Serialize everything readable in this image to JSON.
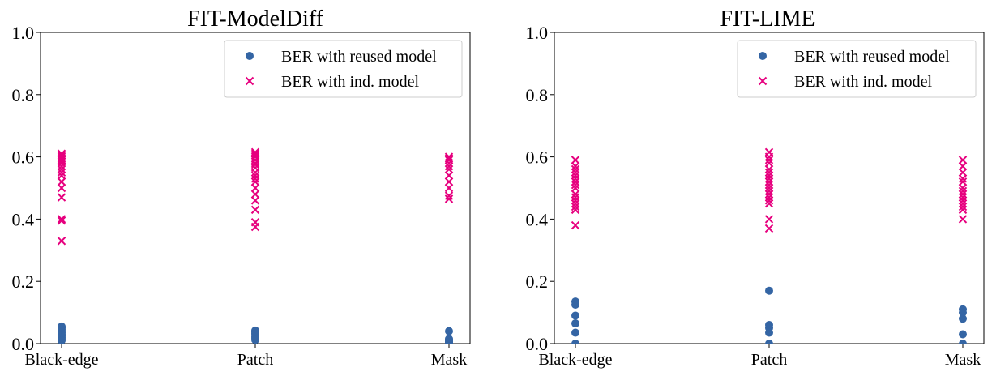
{
  "colors": {
    "reused": "#3465a4",
    "ind": "#e6007e"
  },
  "chart_data": [
    {
      "type": "scatter",
      "title": "FIT-ModelDiff",
      "categories": [
        "Black-edge",
        "Patch",
        "Mask"
      ],
      "ylim": [
        0,
        1.0
      ],
      "yticks": [
        "0.0",
        "0.2",
        "0.4",
        "0.6",
        "0.8",
        "1.0"
      ],
      "legend_position": "top-right",
      "series": [
        {
          "name": "BER with reused model",
          "marker": "circle",
          "values": [
            [
              0.055,
              0.05,
              0.045,
              0.04,
              0.035,
              0.03,
              0.025,
              0.02,
              0.015,
              0.01
            ],
            [
              0.042,
              0.038,
              0.033,
              0.028,
              0.022,
              0.018,
              0.012
            ],
            [
              0.04,
              0.015,
              0.012,
              0.008,
              0.005,
              0.003
            ]
          ]
        },
        {
          "name": "BER with ind. model",
          "marker": "x",
          "values": [
            [
              0.61,
              0.605,
              0.6,
              0.595,
              0.59,
              0.585,
              0.58,
              0.57,
              0.56,
              0.55,
              0.54,
              0.52,
              0.5,
              0.47,
              0.4,
              0.395,
              0.33
            ],
            [
              0.615,
              0.61,
              0.605,
              0.6,
              0.59,
              0.58,
              0.575,
              0.565,
              0.55,
              0.54,
              0.53,
              0.52,
              0.5,
              0.48,
              0.46,
              0.43,
              0.39,
              0.375
            ],
            [
              0.6,
              0.595,
              0.59,
              0.58,
              0.57,
              0.56,
              0.54,
              0.52,
              0.5,
              0.475,
              0.465
            ]
          ]
        }
      ]
    },
    {
      "type": "scatter",
      "title": "FIT-LIME",
      "categories": [
        "Black-edge",
        "Patch",
        "Mask"
      ],
      "ylim": [
        0,
        1.0
      ],
      "yticks": [
        "0.0",
        "0.2",
        "0.4",
        "0.6",
        "0.8",
        "1.0"
      ],
      "legend_position": "top-right",
      "series": [
        {
          "name": "BER with reused model",
          "marker": "circle",
          "values": [
            [
              0.135,
              0.125,
              0.09,
              0.065,
              0.035,
              0.0
            ],
            [
              0.17,
              0.06,
              0.05,
              0.035,
              0.0
            ],
            [
              0.11,
              0.1,
              0.08,
              0.03,
              0.0
            ]
          ]
        },
        {
          "name": "BER with ind. model",
          "marker": "x",
          "values": [
            [
              0.59,
              0.57,
              0.56,
              0.55,
              0.54,
              0.53,
              0.52,
              0.51,
              0.5,
              0.48,
              0.47,
              0.46,
              0.45,
              0.44,
              0.43,
              0.38
            ],
            [
              0.615,
              0.6,
              0.59,
              0.58,
              0.56,
              0.55,
              0.54,
              0.53,
              0.52,
              0.51,
              0.5,
              0.49,
              0.48,
              0.47,
              0.46,
              0.45,
              0.4,
              0.37
            ],
            [
              0.59,
              0.57,
              0.55,
              0.53,
              0.52,
              0.5,
              0.49,
              0.48,
              0.47,
              0.46,
              0.45,
              0.44,
              0.43,
              0.4
            ]
          ]
        }
      ]
    }
  ]
}
